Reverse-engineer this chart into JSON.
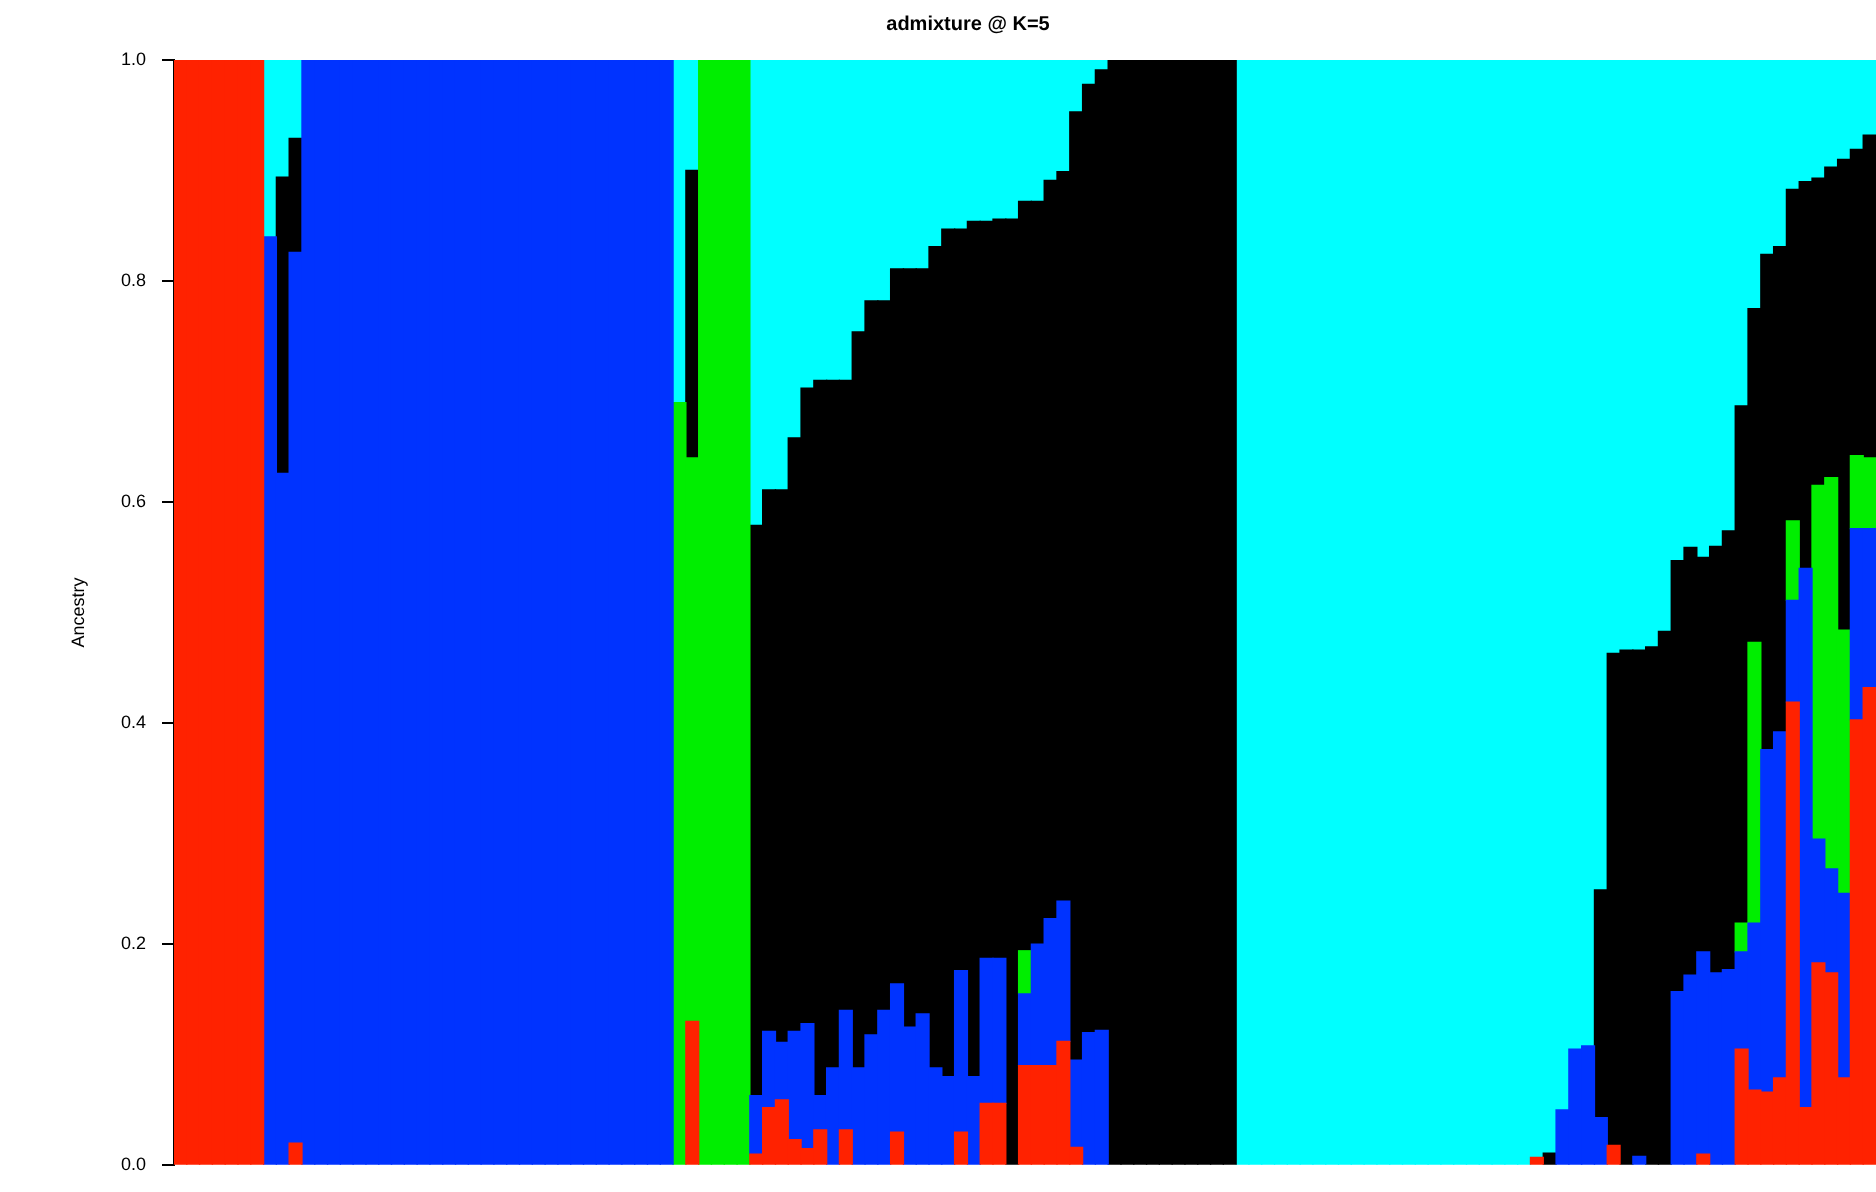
{
  "chart_data": {
    "type": "bar",
    "title": "admixture @ K=5",
    "ylabel": "Ancestry",
    "stacked": true,
    "legend": false,
    "grid": false,
    "tick_labels": "y",
    "ylim": [
      0,
      1
    ],
    "yticks": [
      {
        "value": 0,
        "label": "0.0"
      },
      0.2,
      0.4,
      0.6,
      0.8,
      {
        "value": 1,
        "label": "1.0"
      }
    ],
    "categories": [
      null,
      null,
      null,
      null,
      null,
      null,
      null,
      null,
      null,
      null,
      null,
      null,
      null,
      null,
      null,
      null,
      null,
      null,
      null,
      null,
      null,
      null,
      null,
      null,
      null,
      null,
      null,
      null,
      null,
      null,
      null,
      null,
      null,
      null,
      null,
      null,
      null,
      null,
      null,
      null,
      null,
      null,
      null,
      null,
      null,
      null,
      null,
      null,
      null,
      null,
      null,
      null,
      null,
      null,
      null,
      null,
      null,
      null,
      null,
      null,
      null,
      null,
      null,
      null,
      null,
      null,
      null,
      null,
      null,
      null,
      null,
      null,
      null,
      null,
      null,
      null,
      null,
      null,
      null,
      null,
      null,
      null,
      null,
      null,
      null,
      null,
      null,
      null,
      null,
      null,
      null,
      null,
      null,
      null,
      null,
      null,
      null,
      null,
      null,
      null,
      null,
      null,
      null,
      null,
      null,
      null,
      null,
      null,
      null,
      null,
      null,
      null,
      null,
      null,
      null,
      null,
      null,
      null,
      null,
      null,
      null,
      null,
      null,
      null,
      null,
      null,
      null,
      null,
      null,
      null,
      null,
      null,
      null
    ],
    "series": [
      {
        "color": "#ff2200",
        "values": [
          1,
          1,
          1,
          1,
          1,
          1,
          1,
          null,
          null,
          0.02,
          null,
          null,
          null,
          null,
          null,
          null,
          null,
          null,
          null,
          null,
          null,
          null,
          null,
          null,
          null,
          null,
          null,
          null,
          null,
          null,
          null,
          null,
          null,
          null,
          null,
          null,
          null,
          null,
          null,
          null,
          0.13,
          null,
          null,
          null,
          null,
          0.01,
          0.052,
          0.059,
          0.023,
          0.015,
          0.032,
          null,
          0.032,
          null,
          null,
          null,
          0.03,
          null,
          null,
          null,
          null,
          0.03,
          null,
          0.056,
          0.056,
          null,
          0.09,
          0.09,
          0.09,
          0.112,
          0.016,
          null,
          null,
          null,
          null,
          null,
          null,
          null,
          null,
          null,
          null,
          null,
          null,
          null,
          null,
          null,
          null,
          null,
          null,
          null,
          null,
          null,
          null,
          null,
          null,
          null,
          null,
          null,
          null,
          null,
          null,
          null,
          null,
          null,
          null,
          null,
          0.007,
          null,
          null,
          null,
          null,
          null,
          0.018,
          null,
          null,
          null,
          null,
          null,
          null,
          0.01,
          null,
          null,
          0.105,
          0.068,
          0.066,
          0.079,
          0.419,
          0.052,
          0.183,
          0.174,
          0.079,
          0.403,
          0.432
        ]
      },
      {
        "color": "#0033ff",
        "values": [
          null,
          null,
          null,
          null,
          null,
          null,
          null,
          0.84,
          0.626,
          0.806,
          1,
          1,
          1,
          1,
          1,
          1,
          1,
          1,
          1,
          1,
          1,
          1,
          1,
          1,
          1,
          1,
          1,
          1,
          1,
          1,
          1,
          1,
          1,
          1,
          1,
          1,
          1,
          1,
          1,
          null,
          null,
          null,
          null,
          null,
          null,
          0.053,
          0.069,
          0.052,
          0.098,
          0.113,
          0.031,
          0.088,
          0.108,
          0.088,
          0.118,
          0.14,
          0.134,
          0.125,
          0.137,
          0.088,
          0.08,
          0.146,
          0.08,
          0.131,
          0.131,
          null,
          0.065,
          0.11,
          0.133,
          0.127,
          0.079,
          0.12,
          0.122,
          null,
          null,
          null,
          null,
          null,
          null,
          null,
          null,
          null,
          null,
          null,
          null,
          null,
          null,
          null,
          null,
          null,
          null,
          null,
          null,
          null,
          null,
          null,
          null,
          null,
          null,
          null,
          null,
          null,
          null,
          null,
          null,
          null,
          null,
          null,
          0.05,
          0.105,
          0.108,
          0.043,
          null,
          null,
          0.008,
          null,
          null,
          0.157,
          0.172,
          0.183,
          0.174,
          0.177,
          0.088,
          0.151,
          0.31,
          0.313,
          0.092,
          0.488,
          0.112,
          0.094,
          0.167,
          0.173,
          0.144
        ]
      },
      {
        "color": "#00ee00",
        "values": [
          null,
          null,
          null,
          null,
          null,
          null,
          null,
          null,
          null,
          null,
          null,
          null,
          null,
          null,
          null,
          null,
          null,
          null,
          null,
          null,
          null,
          null,
          null,
          null,
          null,
          null,
          null,
          null,
          null,
          null,
          null,
          null,
          null,
          null,
          null,
          null,
          null,
          null,
          null,
          0.69,
          0.51,
          1,
          1,
          1,
          1,
          null,
          null,
          null,
          null,
          null,
          null,
          null,
          null,
          null,
          null,
          null,
          null,
          null,
          null,
          null,
          null,
          null,
          null,
          null,
          null,
          null,
          0.039,
          null,
          null,
          null,
          null,
          null,
          null,
          null,
          null,
          null,
          null,
          null,
          null,
          null,
          null,
          null,
          null,
          null,
          null,
          null,
          null,
          null,
          null,
          null,
          null,
          null,
          null,
          null,
          null,
          null,
          null,
          null,
          null,
          null,
          null,
          null,
          null,
          null,
          null,
          null,
          null,
          null,
          null,
          null,
          null,
          null,
          null,
          null,
          null,
          null,
          null,
          null,
          null,
          null,
          null,
          null,
          0.026,
          0.254,
          null,
          null,
          0.072,
          null,
          0.32,
          0.354,
          0.238,
          0.066,
          0.064
        ]
      },
      {
        "color": "#000000",
        "values": [
          null,
          null,
          null,
          null,
          null,
          null,
          null,
          null,
          0.268,
          0.103,
          null,
          null,
          null,
          null,
          null,
          null,
          null,
          null,
          null,
          null,
          null,
          null,
          null,
          null,
          null,
          null,
          null,
          null,
          null,
          null,
          null,
          null,
          null,
          null,
          null,
          null,
          null,
          null,
          null,
          null,
          0.26,
          null,
          null,
          null,
          null,
          0.516,
          0.49,
          0.5,
          0.537,
          0.575,
          0.647,
          0.622,
          0.57,
          0.666,
          0.664,
          0.642,
          0.647,
          0.686,
          0.674,
          0.743,
          0.767,
          0.671,
          0.774,
          0.667,
          0.669,
          0.856,
          0.678,
          0.672,
          0.668,
          0.66,
          0.858,
          0.858,
          0.869,
          1,
          1,
          1,
          1,
          1,
          1,
          1,
          1,
          1,
          1,
          null,
          null,
          null,
          null,
          null,
          null,
          null,
          null,
          null,
          null,
          null,
          null,
          null,
          null,
          null,
          null,
          null,
          null,
          null,
          null,
          null,
          null,
          null,
          null,
          0.011,
          null,
          null,
          null,
          0.206,
          0.445,
          0.466,
          0.458,
          0.469,
          0.483,
          0.39,
          0.387,
          0.357,
          0.386,
          0.397,
          0.468,
          0.302,
          0.448,
          0.439,
          0.3,
          0.35,
          0.278,
          0.281,
          0.426,
          0.277,
          0.292
        ]
      },
      {
        "color": "#00ffff",
        "values": [
          null,
          null,
          null,
          null,
          null,
          null,
          null,
          0.16,
          0.106,
          0.071,
          null,
          null,
          null,
          null,
          null,
          null,
          null,
          null,
          null,
          null,
          null,
          null,
          null,
          null,
          null,
          null,
          null,
          null,
          null,
          null,
          null,
          null,
          null,
          null,
          null,
          null,
          null,
          null,
          null,
          0.31,
          0.1,
          null,
          null,
          null,
          null,
          0.421,
          0.389,
          0.389,
          0.342,
          0.297,
          0.29,
          0.29,
          0.29,
          0.246,
          0.218,
          0.218,
          0.189,
          0.189,
          0.189,
          0.169,
          0.153,
          0.153,
          0.146,
          0.146,
          0.144,
          0.144,
          0.128,
          0.128,
          0.109,
          0.101,
          0.047,
          0.022,
          0.009,
          null,
          null,
          null,
          null,
          null,
          null,
          null,
          null,
          null,
          null,
          1,
          1,
          1,
          1,
          1,
          1,
          1,
          1,
          1,
          1,
          1,
          1,
          1,
          1,
          1,
          1,
          1,
          1,
          1,
          1,
          1,
          1,
          1,
          0.993,
          0.989,
          0.95,
          0.895,
          0.892,
          0.751,
          0.537,
          0.534,
          0.534,
          0.531,
          0.517,
          0.453,
          0.441,
          0.45,
          0.44,
          0.426,
          0.313,
          0.225,
          0.176,
          0.169,
          0.117,
          0.11,
          0.107,
          0.097,
          0.09,
          0.081,
          0.068
        ]
      }
    ]
  }
}
